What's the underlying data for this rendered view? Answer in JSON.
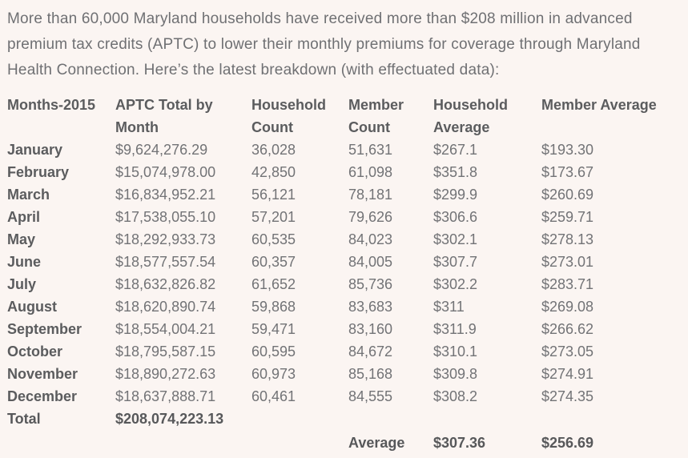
{
  "page": {
    "background_color": "#fbf5f2",
    "body_text_color": "#6f7073",
    "bold_text_color": "#5b5c5e"
  },
  "intro": "More than 60,000 Maryland households have received more than $208 million in advanced premium tax credits (APTC) to lower their monthly premiums for coverage through Maryland Health Connection. Here’s the latest breakdown (with effectuated data):",
  "table": {
    "headers": [
      "Months-2015",
      "APTC Total by Month",
      "Household Count",
      "Member Count",
      "Household Average",
      "Member Average"
    ],
    "rows": [
      {
        "month": "January",
        "aptc": "$9,624,276.29",
        "household_count": "36,028",
        "member_count": "51,631",
        "household_avg": "$267.1",
        "member_avg": "$193.30"
      },
      {
        "month": "February",
        "aptc": "$15,074,978.00",
        "household_count": "42,850",
        "member_count": "61,098",
        "household_avg": "$351.8",
        "member_avg": "$173.67"
      },
      {
        "month": "March",
        "aptc": "$16,834,952.21",
        "household_count": "56,121",
        "member_count": "78,181",
        "household_avg": "$299.9",
        "member_avg": "$260.69"
      },
      {
        "month": "April",
        "aptc": "$17,538,055.10",
        "household_count": "57,201",
        "member_count": "79,626",
        "household_avg": "$306.6",
        "member_avg": "$259.71"
      },
      {
        "month": "May",
        "aptc": "$18,292,933.73",
        "household_count": "60,535",
        "member_count": "84,023",
        "household_avg": "$302.1",
        "member_avg": "$278.13"
      },
      {
        "month": "June",
        "aptc": "$18,577,557.54",
        "household_count": "60,357",
        "member_count": "84,005",
        "household_avg": "$307.7",
        "member_avg": "$273.01"
      },
      {
        "month": "July",
        "aptc": "$18,632,826.82",
        "household_count": "61,652",
        "member_count": "85,736",
        "household_avg": "$302.2",
        "member_avg": "$283.71"
      },
      {
        "month": "August",
        "aptc": "$18,620,890.74",
        "household_count": "59,868",
        "member_count": "83,683",
        "household_avg": "$311",
        "member_avg": "$269.08"
      },
      {
        "month": "September",
        "aptc": "$18,554,004.21",
        "household_count": "59,471",
        "member_count": "83,160",
        "household_avg": "$311.9",
        "member_avg": "$266.62"
      },
      {
        "month": "October",
        "aptc": "$18,795,587.15",
        "household_count": "60,595",
        "member_count": "84,672",
        "household_avg": "$310.1",
        "member_avg": "$273.05"
      },
      {
        "month": "November",
        "aptc": "$18,890,272.63",
        "household_count": "60,973",
        "member_count": "85,168",
        "household_avg": "$309.8",
        "member_avg": "$274.91"
      },
      {
        "month": "December",
        "aptc": "$18,637,888.71",
        "household_count": "60,461",
        "member_count": "84,555",
        "household_avg": "$308.2",
        "member_avg": "$274.35"
      }
    ],
    "total_row": {
      "label": "Total",
      "aptc_total": "$208,074,223.13"
    },
    "average_row": {
      "label": "Average",
      "household_avg": "$307.36",
      "member_avg": "$256.69"
    }
  }
}
